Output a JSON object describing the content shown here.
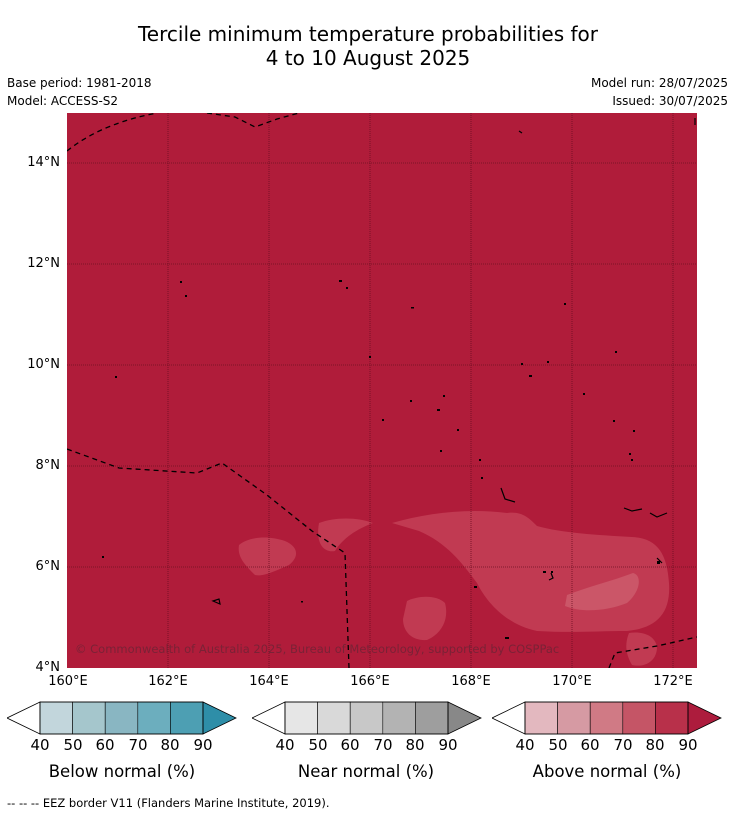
{
  "title_line1": "Tercile minimum temperature probabilities for",
  "title_line2": "4 to 10 August 2025",
  "base_period": "Base period: 1981-2018",
  "model": "Model: ACCESS-S2",
  "model_run": "Model run: 28/07/2025",
  "issued": "Issued: 30/07/2025",
  "copyright": "© Commonwealth of Australia 2025, Bureau of Meteorology, supported by COSPPac",
  "lat_labels": [
    "14°N",
    "12°N",
    "10°N",
    "8°N",
    "6°N",
    "4°N"
  ],
  "lon_labels": [
    "160°E",
    "162°E",
    "164°E",
    "166°E",
    "168°E",
    "170°E",
    "172°E"
  ],
  "colors": {
    "map_fill": "#b01c3a",
    "below": [
      "#c2d6dc",
      "#a5c6cc",
      "#89b6c2",
      "#6caebe",
      "#4d9fb3",
      "#2e8ea8"
    ],
    "near": [
      "#e6e6e6",
      "#d9d9d9",
      "#c8c8c8",
      "#b3b3b3",
      "#9e9e9e",
      "#888888"
    ],
    "above": [
      "#e3b8bf",
      "#d69aa3",
      "#d07a85",
      "#c55566",
      "#b8304a",
      "#ad1c3d"
    ]
  },
  "colorbars": [
    {
      "name": "below",
      "title": "Below normal (%)",
      "labels": [
        "40",
        "50",
        "60",
        "70",
        "80",
        "90"
      ]
    },
    {
      "name": "near",
      "title": "Near normal (%)",
      "labels": [
        "40",
        "50",
        "60",
        "70",
        "80",
        "90"
      ]
    },
    {
      "name": "above",
      "title": "Above normal (%)",
      "labels": [
        "40",
        "50",
        "60",
        "70",
        "80",
        "90"
      ]
    }
  ],
  "footer": "-- -- -- EEZ border V11 (Flanders Marine Institute, 2019)."
}
